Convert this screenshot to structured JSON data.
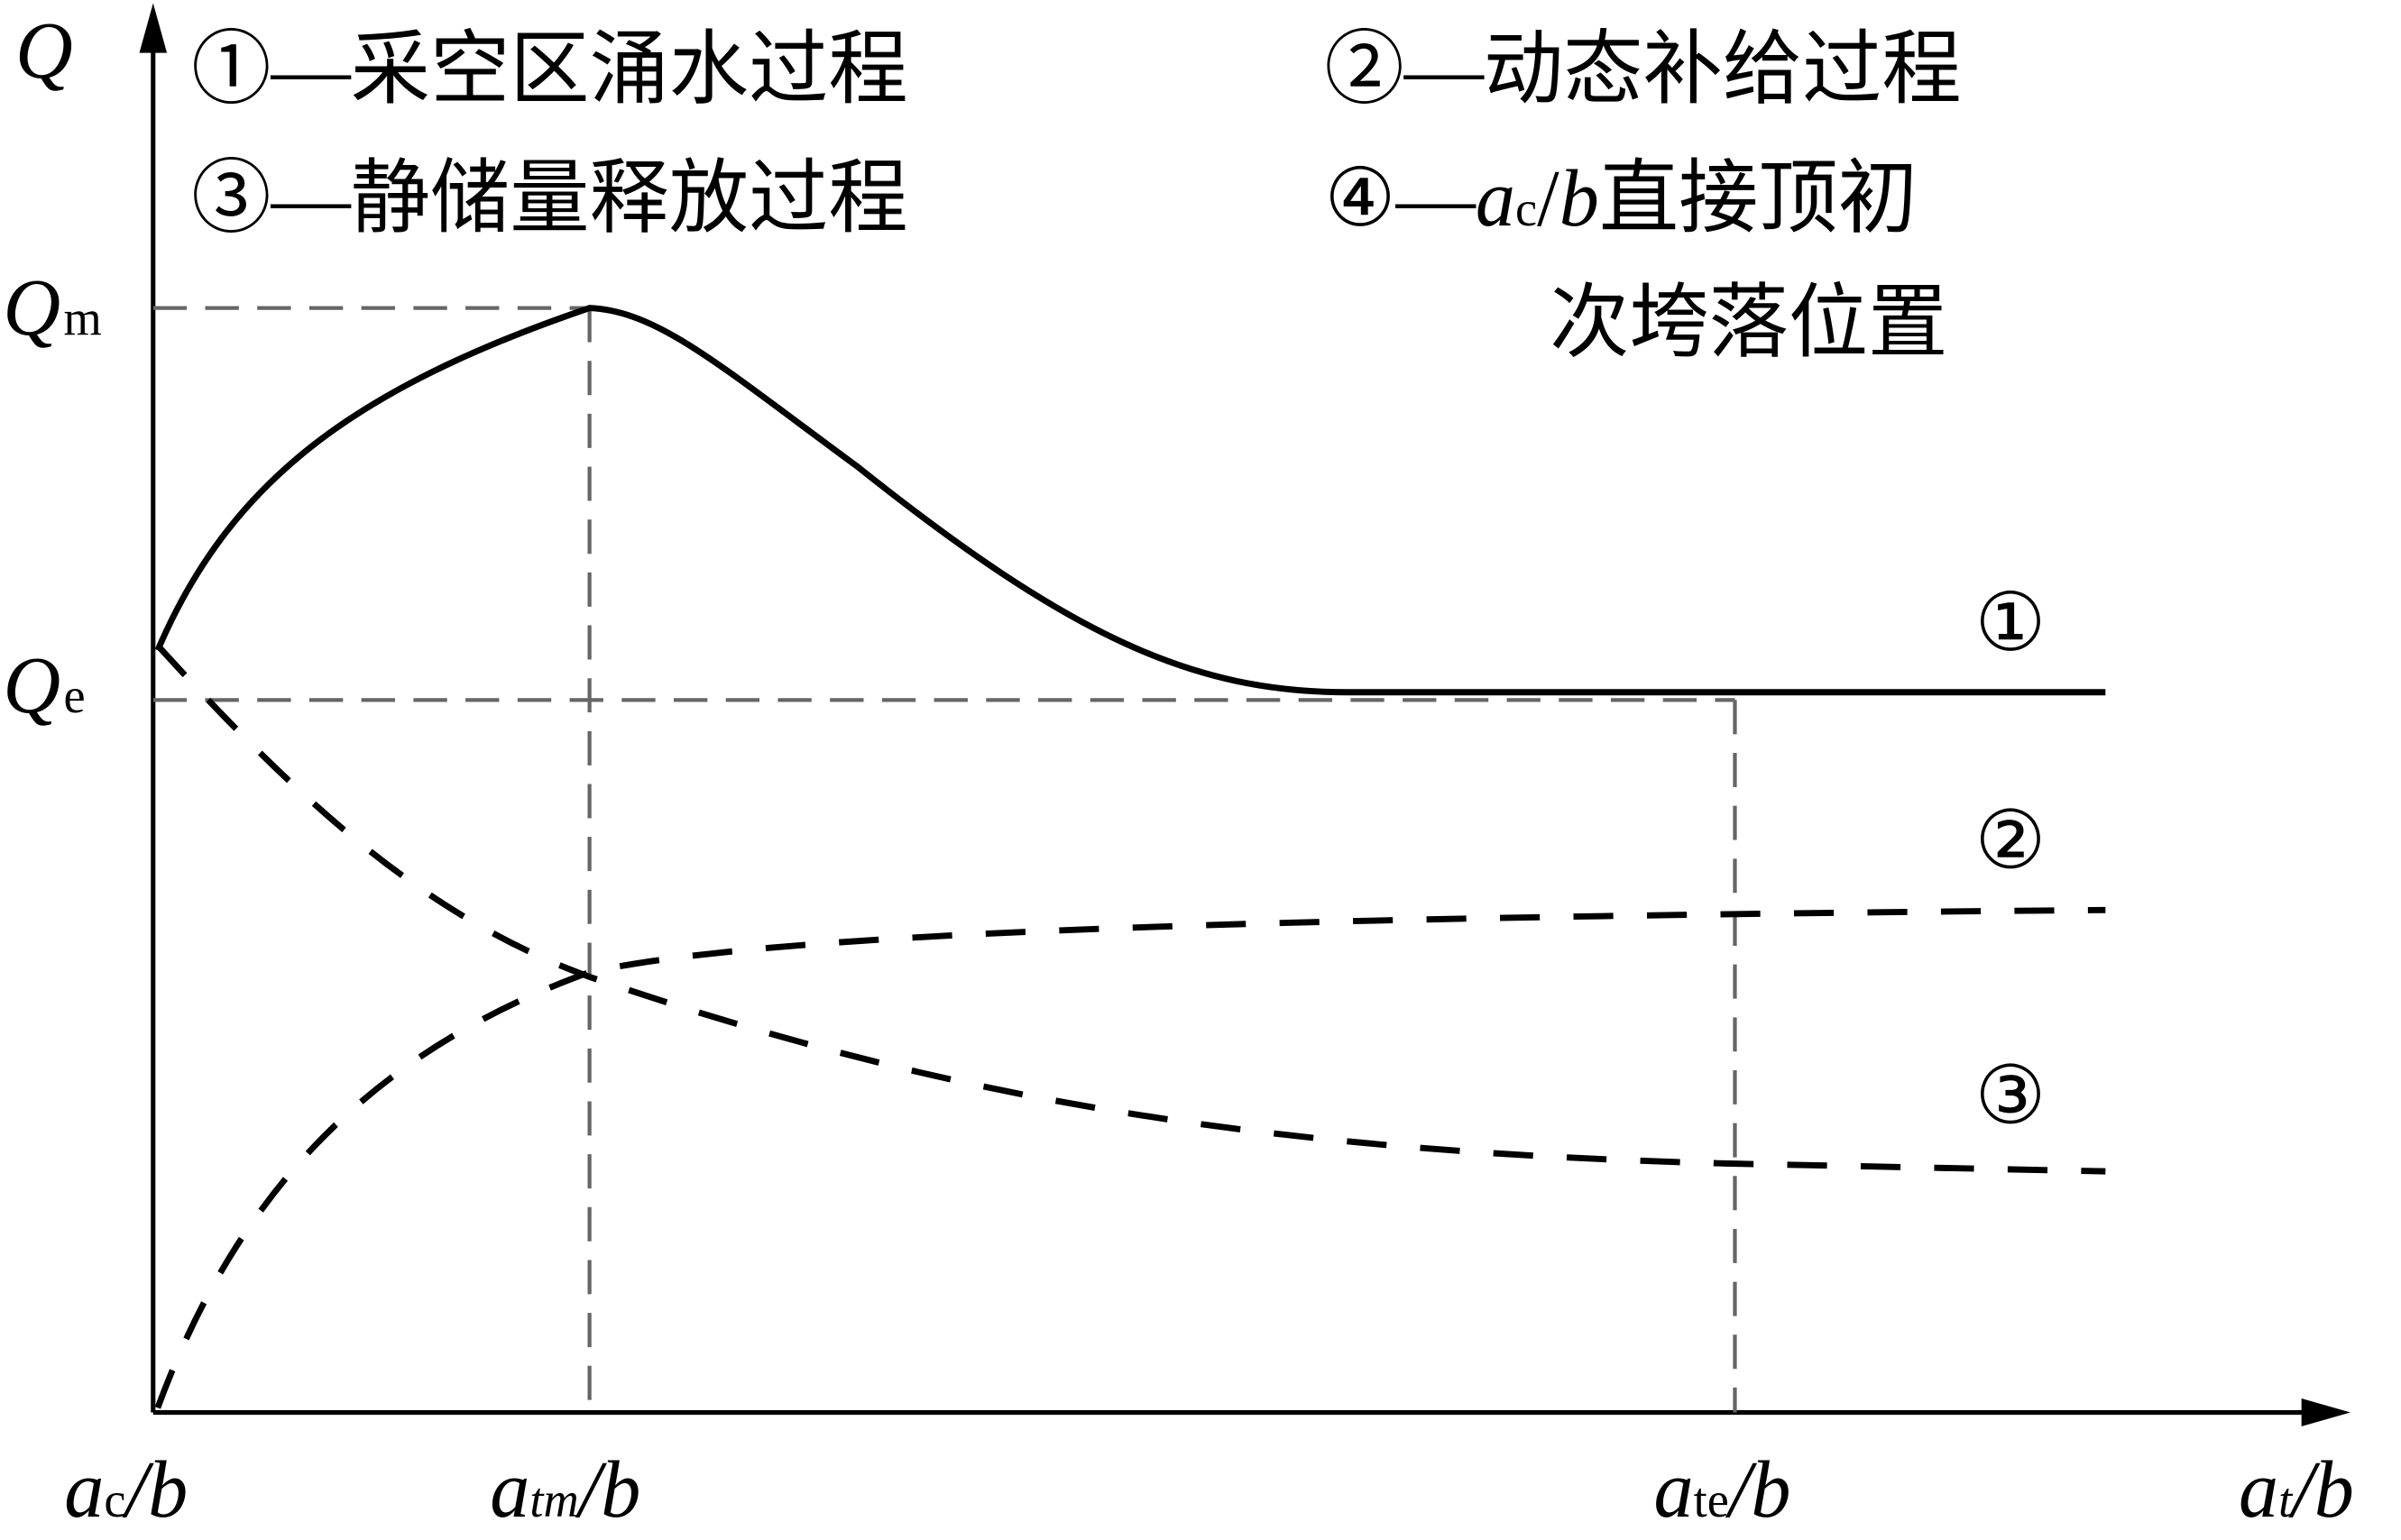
{
  "y_axis": {
    "label": "Q",
    "ticks": [
      {
        "main": "Q",
        "sub": "m"
      },
      {
        "main": "Q",
        "sub": "e"
      }
    ]
  },
  "x_axis": {
    "ticks": [
      {
        "var": "a",
        "sub": "c",
        "rest": "/b"
      },
      {
        "var": "a",
        "sub": "tm",
        "rest": "/b"
      },
      {
        "var": "a",
        "sub": "te",
        "rest": "/b"
      },
      {
        "var": "a",
        "sub": "t",
        "rest": "/b"
      }
    ]
  },
  "legend": [
    {
      "text": "①—采空区涌水过程"
    },
    {
      "text": "②—动态补给过程"
    },
    {
      "text": "③—静储量释放过程"
    },
    {
      "marker": "④—",
      "var": "a",
      "sub": "c",
      "slash": "/",
      "b": "b",
      "rest": "直接顶初",
      "line2": "次垮落位置"
    }
  ],
  "curve_labels": [
    "①",
    "②",
    "③"
  ]
}
